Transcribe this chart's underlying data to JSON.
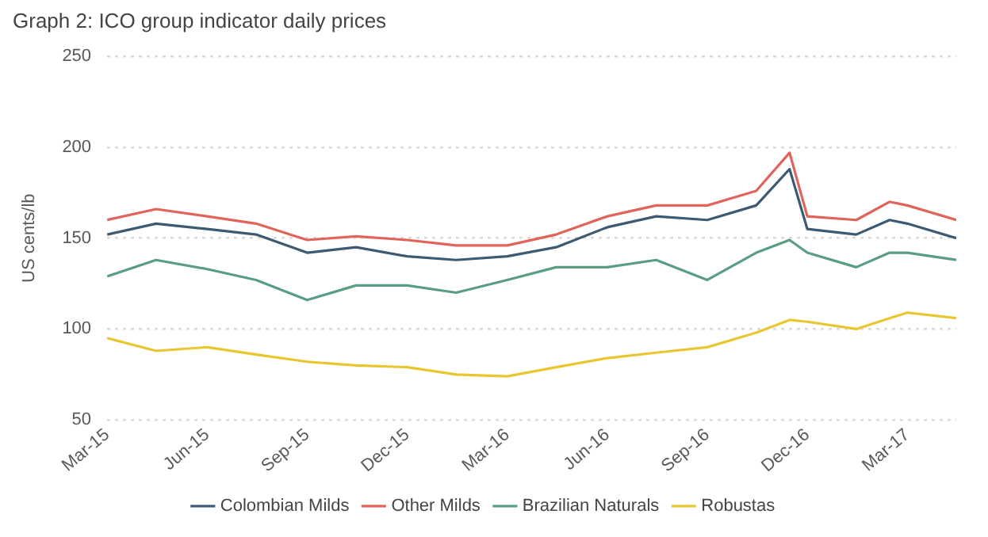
{
  "chart_data": {
    "type": "line",
    "title": "Graph 2: ICO group indicator daily prices",
    "ylabel": "US cents/lb",
    "x": [
      "2015-03-01",
      "2015-04-15",
      "2015-06-01",
      "2015-07-15",
      "2015-09-01",
      "2015-10-15",
      "2015-12-01",
      "2016-01-15",
      "2016-03-01",
      "2016-04-15",
      "2016-06-01",
      "2016-07-15",
      "2016-09-01",
      "2016-10-15",
      "2016-11-15",
      "2016-12-01",
      "2017-01-15",
      "2017-02-15",
      "2017-03-01",
      "2017-04-15"
    ],
    "series": [
      {
        "name": "Colombian Milds",
        "color": "#3d5a73",
        "values": [
          152,
          158,
          155,
          152,
          142,
          145,
          140,
          138,
          140,
          145,
          156,
          162,
          160,
          168,
          188,
          155,
          152,
          160,
          158,
          150
        ]
      },
      {
        "name": "Other Milds",
        "color": "#e0645a",
        "values": [
          160,
          166,
          162,
          158,
          149,
          151,
          149,
          146,
          146,
          152,
          162,
          168,
          168,
          176,
          197,
          162,
          160,
          170,
          168,
          160
        ]
      },
      {
        "name": "Brazilian Naturals",
        "color": "#5a9e82",
        "values": [
          129,
          138,
          133,
          127,
          116,
          124,
          124,
          120,
          127,
          134,
          134,
          138,
          127,
          142,
          149,
          142,
          134,
          142,
          142,
          138
        ]
      },
      {
        "name": "Robustas",
        "color": "#e8c630",
        "values": [
          95,
          88,
          90,
          86,
          82,
          80,
          79,
          75,
          74,
          79,
          84,
          87,
          90,
          98,
          105,
          104,
          100,
          106,
          109,
          106
        ]
      }
    ],
    "xlim": [
      "2015-03-01",
      "2017-04-15"
    ],
    "xticks": [
      {
        "value": "2015-03-01",
        "label": "Mar-15"
      },
      {
        "value": "2015-06-01",
        "label": "Jun-15"
      },
      {
        "value": "2015-09-01",
        "label": "Sep-15"
      },
      {
        "value": "2015-12-01",
        "label": "Dec-15"
      },
      {
        "value": "2016-03-01",
        "label": "Mar-16"
      },
      {
        "value": "2016-06-01",
        "label": "Jun-16"
      },
      {
        "value": "2016-09-01",
        "label": "Sep-16"
      },
      {
        "value": "2016-12-01",
        "label": "Dec-16"
      },
      {
        "value": "2017-03-01",
        "label": "Mar-17"
      }
    ],
    "ylim": [
      50,
      250
    ],
    "yticks": [
      50,
      100,
      150,
      200,
      250
    ],
    "grid": "y",
    "legend": "bottom",
    "marker": "none",
    "line_style": "solid"
  }
}
